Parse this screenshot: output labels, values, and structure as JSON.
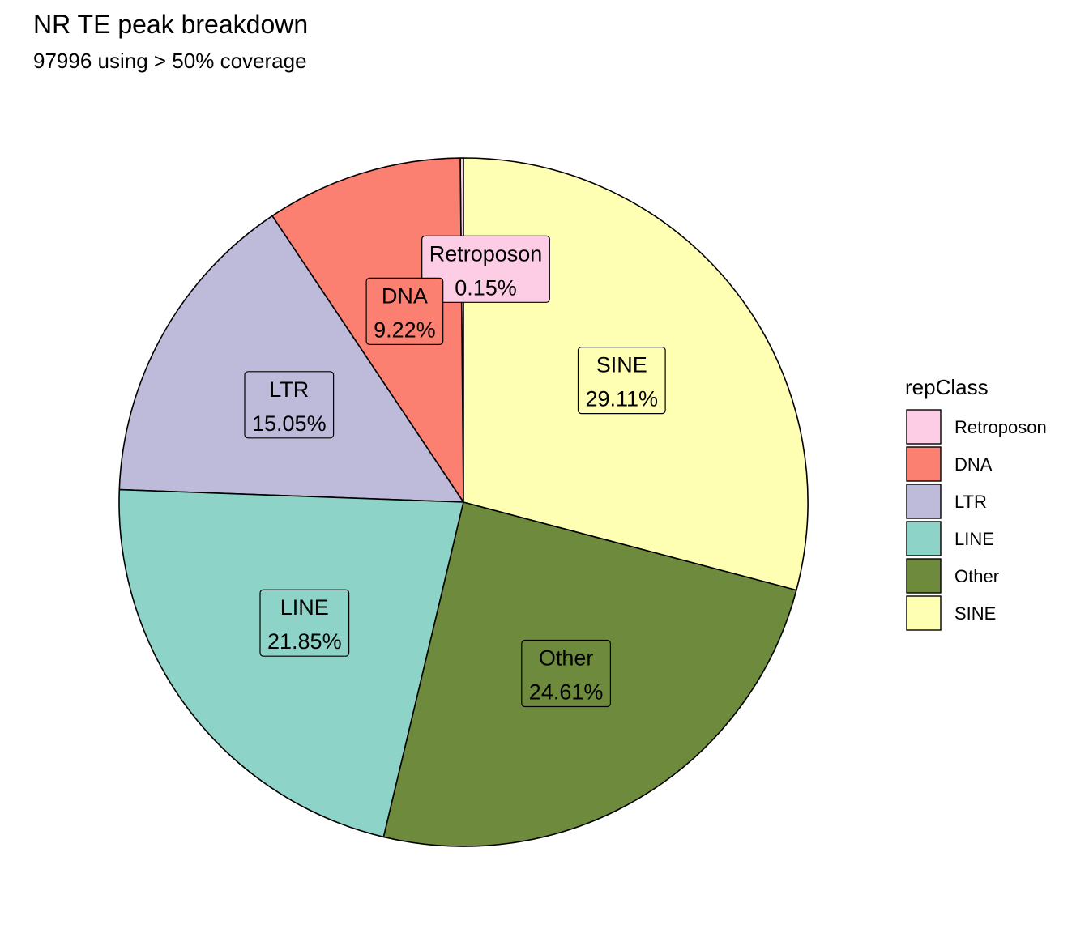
{
  "chart_data": {
    "type": "pie",
    "title": "NR TE peak breakdown",
    "subtitle": "97996 using > 50% coverage",
    "legend_title": "repClass",
    "legend_position": "right",
    "slices": [
      {
        "label": "Retroposon",
        "value_label": "0.15%",
        "value": 0.15,
        "color": "#FCCDE5"
      },
      {
        "label": "DNA",
        "value_label": "9.22%",
        "value": 9.22,
        "color": "#FB8072"
      },
      {
        "label": "LTR",
        "value_label": "15.05%",
        "value": 15.05,
        "color": "#BEBADA"
      },
      {
        "label": "LINE",
        "value_label": "21.85%",
        "value": 21.85,
        "color": "#8DD3C7"
      },
      {
        "label": "Other",
        "value_label": "24.61%",
        "value": 24.61,
        "color": "#6E8B3D"
      },
      {
        "label": "SINE",
        "value_label": "29.11%",
        "value": 29.11,
        "color": "#FFFFB3"
      }
    ]
  }
}
